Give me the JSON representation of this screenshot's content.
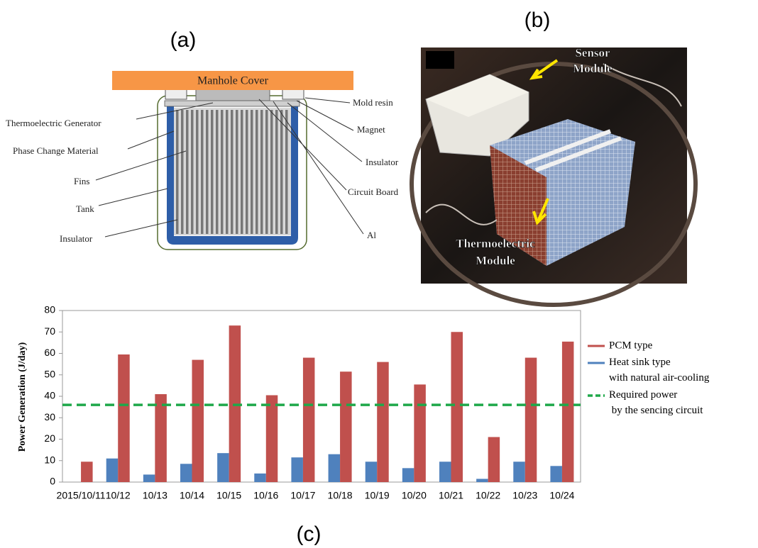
{
  "panels": {
    "a": "(a)",
    "b": "(b)",
    "c": "(c)"
  },
  "diagram": {
    "cover": "Manhole Cover",
    "labels": [
      "Thermoelectric Generator",
      "Phase Change Material",
      "Fins",
      "Tank",
      "Insulator",
      "Mold resin",
      "Magnet",
      "Insulator",
      "Circuit Board",
      "Al"
    ]
  },
  "photo": {
    "labels": [
      "Sensor\nModule",
      "Thermoelectric\nModule"
    ]
  },
  "chart_data": {
    "type": "bar",
    "y_label": "Power Generation (J/day)",
    "categories": [
      "2015/10/11",
      "10/12",
      "10/13",
      "10/14",
      "10/15",
      "10/16",
      "10/17",
      "10/18",
      "10/19",
      "10/20",
      "10/21",
      "10/22",
      "10/23",
      "10/24"
    ],
    "series": [
      {
        "name": "Heat sink type\nwith natural air-cooling",
        "color": "#4f81bd",
        "values": [
          0,
          11,
          3.5,
          8.5,
          13.5,
          4,
          11.5,
          13,
          9.5,
          6.5,
          9.5,
          1.5,
          9.5,
          7.5
        ]
      },
      {
        "name": "PCM type",
        "color": "#c0504d",
        "values": [
          9.5,
          59.5,
          41,
          57,
          73,
          40.5,
          58,
          51.5,
          56,
          45.5,
          70,
          21,
          58,
          65.5
        ]
      }
    ],
    "reference_line": {
      "name": "Required power\n by the sencing circuit",
      "value": 36,
      "color": "#1fa84a"
    },
    "ylim": [
      0,
      80
    ],
    "yticks": [
      0,
      10,
      20,
      30,
      40,
      50,
      60,
      70,
      80
    ],
    "grid": false
  }
}
